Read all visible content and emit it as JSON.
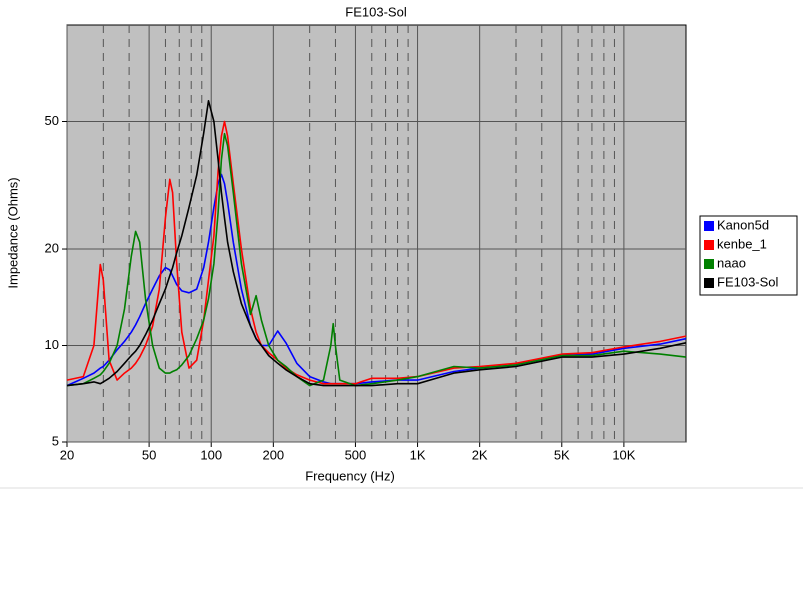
{
  "chart_data": {
    "type": "line",
    "title": "FE103-Sol",
    "x_label": "Frequency (Hz)",
    "y_label": "Impedance (Ohms)",
    "x_scale": "log",
    "y_scale": "log",
    "grid": true,
    "legend": "right",
    "xlim": [
      20,
      20000
    ],
    "ylim": [
      5,
      100
    ],
    "xticks": [
      20,
      50,
      100,
      200,
      500,
      {
        "value": 1000,
        "label": "1K"
      },
      {
        "value": 2000,
        "label": "2K"
      },
      {
        "value": 5000,
        "label": "5K"
      },
      {
        "value": 10000,
        "label": "10K"
      }
    ],
    "x_minor_grid": [
      30,
      40,
      60,
      70,
      80,
      90,
      300,
      400,
      600,
      700,
      800,
      900,
      3000,
      4000,
      6000,
      7000,
      8000,
      9000
    ],
    "yticks": [
      5,
      10,
      20,
      50
    ],
    "x": [
      20,
      24,
      27,
      29,
      30,
      32,
      35,
      38,
      41,
      43,
      45,
      48,
      52,
      56,
      60,
      63,
      65,
      68,
      72,
      78,
      85,
      92,
      97,
      103,
      108,
      112,
      116,
      120,
      128,
      140,
      155,
      165,
      175,
      190,
      210,
      230,
      260,
      300,
      350,
      380,
      390,
      400,
      420,
      500,
      600,
      800,
      1000,
      1500,
      2000,
      3000,
      5000,
      7000,
      10000,
      15000,
      20000
    ],
    "series": [
      {
        "name": "Kanon5d",
        "color": "#0000ff",
        "values": [
          7.5,
          7.9,
          8.2,
          8.5,
          8.6,
          9.0,
          9.7,
          10.3,
          11.0,
          11.6,
          12.3,
          13.5,
          15.0,
          16.5,
          17.5,
          17.2,
          16.5,
          15.5,
          14.8,
          14.6,
          15.0,
          17.5,
          21.0,
          27.0,
          32.0,
          34.2,
          32.0,
          28.0,
          21.0,
          15.0,
          11.5,
          10.5,
          10.0,
          10.0,
          11.1,
          10.2,
          8.8,
          8.0,
          7.7,
          7.6,
          7.6,
          7.6,
          7.6,
          7.6,
          7.7,
          7.8,
          7.8,
          8.3,
          8.5,
          8.7,
          9.3,
          9.4,
          9.8,
          10.1,
          10.5
        ]
      },
      {
        "name": "kenbe_1",
        "color": "#ff0000",
        "values": [
          7.8,
          8.0,
          10.0,
          17.9,
          16.0,
          9.0,
          7.8,
          8.2,
          8.5,
          8.8,
          9.2,
          10.0,
          11.5,
          15.0,
          25.0,
          33.0,
          30.0,
          18.0,
          11.0,
          8.5,
          9.0,
          12.0,
          16.0,
          22.0,
          35.0,
          45.0,
          50.0,
          45.0,
          32.0,
          20.0,
          13.0,
          11.0,
          10.0,
          9.5,
          9.0,
          8.5,
          8.1,
          7.8,
          7.6,
          7.6,
          7.6,
          7.6,
          7.6,
          7.6,
          7.9,
          7.9,
          8.0,
          8.5,
          8.6,
          8.8,
          9.4,
          9.5,
          9.9,
          10.3,
          10.7
        ]
      },
      {
        "name": "naao",
        "color": "#008000",
        "values": [
          7.5,
          7.6,
          7.9,
          8.1,
          8.3,
          8.8,
          10.0,
          13.0,
          19.0,
          22.7,
          21.0,
          14.0,
          10.0,
          8.5,
          8.2,
          8.2,
          8.3,
          8.4,
          8.7,
          9.3,
          10.5,
          12.0,
          14.0,
          18.0,
          26.0,
          38.0,
          45.8,
          42.0,
          30.0,
          18.0,
          12.5,
          14.3,
          12.0,
          10.0,
          9.0,
          8.6,
          8.0,
          7.5,
          7.8,
          10.0,
          11.7,
          10.0,
          7.8,
          7.5,
          7.6,
          7.8,
          8.0,
          8.6,
          8.5,
          8.7,
          9.3,
          9.3,
          9.6,
          9.4,
          9.2
        ]
      },
      {
        "name": "FE103-Sol",
        "color": "#000000",
        "values": [
          7.5,
          7.6,
          7.7,
          7.6,
          7.7,
          7.9,
          8.3,
          8.8,
          9.3,
          9.6,
          10.0,
          10.8,
          12.0,
          13.5,
          15.0,
          16.5,
          17.5,
          19.5,
          22.0,
          27.0,
          34.0,
          46.0,
          58.0,
          50.0,
          38.0,
          30.0,
          25.0,
          21.0,
          17.0,
          13.5,
          11.5,
          10.5,
          10.0,
          9.3,
          8.8,
          8.4,
          8.0,
          7.6,
          7.5,
          7.5,
          7.5,
          7.5,
          7.5,
          7.5,
          7.5,
          7.6,
          7.6,
          8.2,
          8.4,
          8.6,
          9.2,
          9.2,
          9.4,
          9.8,
          10.2
        ]
      }
    ]
  }
}
